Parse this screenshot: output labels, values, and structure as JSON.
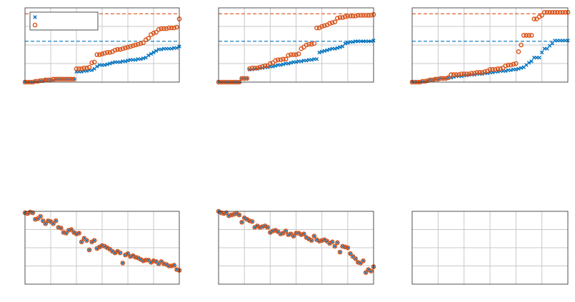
{
  "colors": {
    "series_blue": "#0072BD",
    "series_orange": "#D95319",
    "grid": "#c8c8c8",
    "axes": "#262626",
    "background": "#ffffff"
  },
  "chart_data": [
    {
      "type": "scatter",
      "grid": true,
      "legend": {
        "placement": "top-left",
        "entries": [
          "",
          ""
        ]
      },
      "xlim": [
        0,
        60
      ],
      "ylim": [
        0,
        1
      ],
      "reference_lines": [
        {
          "series": 0,
          "y": 0.55,
          "style": "dashed"
        },
        {
          "series": 1,
          "y": 0.92,
          "style": "dashed"
        }
      ],
      "series": [
        {
          "marker": "x",
          "color": "#0072BD",
          "values": [
            0.0,
            0.0,
            0.0,
            0.0,
            0.01,
            0.01,
            0.02,
            0.02,
            0.03,
            0.03,
            0.03,
            0.03,
            0.04,
            0.04,
            0.04,
            0.04,
            0.04,
            0.04,
            0.04,
            0.04,
            0.14,
            0.14,
            0.14,
            0.15,
            0.15,
            0.16,
            0.16,
            0.18,
            0.21,
            0.23,
            0.23,
            0.23,
            0.24,
            0.25,
            0.26,
            0.27,
            0.27,
            0.27,
            0.28,
            0.28,
            0.29,
            0.3,
            0.3,
            0.3,
            0.31,
            0.31,
            0.32,
            0.33,
            0.36,
            0.38,
            0.4,
            0.42,
            0.44,
            0.44,
            0.45,
            0.45,
            0.45,
            0.45,
            0.46,
            0.46,
            0.48
          ]
        },
        {
          "marker": "o",
          "color": "#D95319",
          "values": [
            0.0,
            0.0,
            0.0,
            0.0,
            0.01,
            0.01,
            0.02,
            0.02,
            0.03,
            0.03,
            0.03,
            0.04,
            0.04,
            0.04,
            0.04,
            0.04,
            0.04,
            0.04,
            0.04,
            0.04,
            0.18,
            0.18,
            0.18,
            0.19,
            0.19,
            0.2,
            0.26,
            0.27,
            0.37,
            0.37,
            0.38,
            0.39,
            0.4,
            0.4,
            0.41,
            0.43,
            0.44,
            0.44,
            0.45,
            0.46,
            0.47,
            0.48,
            0.49,
            0.5,
            0.51,
            0.52,
            0.53,
            0.57,
            0.59,
            0.64,
            0.66,
            0.67,
            0.71,
            0.72,
            0.72,
            0.72,
            0.73,
            0.73,
            0.73,
            0.74,
            0.85
          ]
        }
      ]
    },
    {
      "type": "scatter",
      "grid": true,
      "xlim": [
        0,
        60
      ],
      "ylim": [
        0,
        1
      ],
      "reference_lines": [
        {
          "series": 0,
          "y": 0.55,
          "style": "dashed"
        },
        {
          "series": 1,
          "y": 0.92,
          "style": "dashed"
        }
      ],
      "series": [
        {
          "marker": "x",
          "color": "#0072BD",
          "values": [
            0.0,
            0.0,
            0.0,
            0.0,
            0.0,
            0.0,
            0.0,
            0.0,
            0.0,
            0.05,
            0.05,
            0.05,
            0.17,
            0.17,
            0.18,
            0.18,
            0.19,
            0.19,
            0.2,
            0.2,
            0.21,
            0.21,
            0.22,
            0.23,
            0.23,
            0.24,
            0.25,
            0.25,
            0.26,
            0.27,
            0.27,
            0.28,
            0.28,
            0.29,
            0.29,
            0.3,
            0.3,
            0.31,
            0.31,
            0.4,
            0.41,
            0.42,
            0.43,
            0.44,
            0.45,
            0.45,
            0.46,
            0.47,
            0.48,
            0.52,
            0.53,
            0.54,
            0.54,
            0.55,
            0.55,
            0.55,
            0.55,
            0.55,
            0.55,
            0.55,
            0.56
          ]
        },
        {
          "marker": "o",
          "color": "#D95319",
          "values": [
            0.0,
            0.0,
            0.0,
            0.0,
            0.0,
            0.0,
            0.0,
            0.0,
            0.0,
            0.05,
            0.05,
            0.05,
            0.18,
            0.19,
            0.19,
            0.19,
            0.2,
            0.21,
            0.22,
            0.22,
            0.25,
            0.26,
            0.29,
            0.3,
            0.3,
            0.31,
            0.31,
            0.36,
            0.37,
            0.37,
            0.37,
            0.38,
            0.45,
            0.47,
            0.5,
            0.51,
            0.51,
            0.52,
            0.73,
            0.73,
            0.75,
            0.76,
            0.77,
            0.79,
            0.8,
            0.81,
            0.86,
            0.87,
            0.87,
            0.88,
            0.89,
            0.89,
            0.89,
            0.89,
            0.9,
            0.9,
            0.9,
            0.9,
            0.9,
            0.9,
            0.91
          ]
        }
      ]
    },
    {
      "type": "scatter",
      "grid": true,
      "xlim": [
        0,
        60
      ],
      "ylim": [
        0,
        1
      ],
      "reference_lines": [
        {
          "series": 0,
          "y": 0.55,
          "style": "dashed"
        },
        {
          "series": 1,
          "y": 0.92,
          "style": "dashed"
        }
      ],
      "series": [
        {
          "marker": "x",
          "color": "#0072BD",
          "values": [
            0.0,
            0.0,
            0.0,
            0.0,
            0.01,
            0.01,
            0.02,
            0.03,
            0.03,
            0.04,
            0.04,
            0.05,
            0.05,
            0.05,
            0.06,
            0.06,
            0.07,
            0.08,
            0.08,
            0.08,
            0.09,
            0.09,
            0.1,
            0.1,
            0.1,
            0.11,
            0.11,
            0.11,
            0.12,
            0.12,
            0.13,
            0.13,
            0.14,
            0.14,
            0.15,
            0.15,
            0.15,
            0.16,
            0.16,
            0.17,
            0.17,
            0.18,
            0.19,
            0.2,
            0.23,
            0.26,
            0.28,
            0.33,
            0.33,
            0.33,
            0.4,
            0.45,
            0.45,
            0.49,
            0.52,
            0.56,
            0.56,
            0.56,
            0.56,
            0.56,
            0.56
          ]
        },
        {
          "marker": "o",
          "color": "#D95319",
          "values": [
            0.0,
            0.0,
            0.0,
            0.0,
            0.01,
            0.01,
            0.02,
            0.03,
            0.03,
            0.04,
            0.04,
            0.05,
            0.05,
            0.05,
            0.06,
            0.1,
            0.1,
            0.1,
            0.1,
            0.11,
            0.11,
            0.11,
            0.11,
            0.12,
            0.12,
            0.13,
            0.13,
            0.13,
            0.14,
            0.15,
            0.17,
            0.17,
            0.17,
            0.18,
            0.18,
            0.19,
            0.22,
            0.23,
            0.23,
            0.24,
            0.25,
            0.41,
            0.5,
            0.63,
            0.63,
            0.63,
            0.63,
            0.85,
            0.85,
            0.88,
            0.9,
            0.94,
            0.94,
            0.94,
            0.94,
            0.94,
            0.94,
            0.94,
            0.94,
            0.94,
            0.94
          ]
        }
      ]
    },
    {
      "type": "scatter",
      "grid": true,
      "xlim": [
        0,
        60
      ],
      "ylim": [
        0,
        1
      ],
      "series": [
        {
          "marker": "x",
          "color": "#0072BD",
          "values": [
            0.98,
            0.97,
            0.99,
            0.98,
            0.89,
            0.9,
            0.93,
            0.87,
            0.83,
            0.87,
            0.86,
            0.83,
            0.87,
            0.78,
            0.77,
            0.71,
            0.7,
            0.74,
            0.75,
            0.71,
            0.69,
            0.7,
            0.58,
            0.63,
            0.6,
            0.47,
            0.58,
            0.6,
            0.49,
            0.51,
            0.53,
            0.52,
            0.5,
            0.48,
            0.45,
            0.43,
            0.45,
            0.43,
            0.29,
            0.4,
            0.42,
            0.38,
            0.39,
            0.37,
            0.36,
            0.34,
            0.32,
            0.33,
            0.33,
            0.3,
            0.32,
            0.31,
            0.28,
            0.31,
            0.28,
            0.27,
            0.25,
            0.25,
            0.26,
            0.2,
            0.19
          ]
        },
        {
          "marker": "o",
          "color": "#D95319",
          "values": [
            0.98,
            0.97,
            0.99,
            0.98,
            0.89,
            0.9,
            0.93,
            0.87,
            0.83,
            0.87,
            0.86,
            0.83,
            0.87,
            0.78,
            0.77,
            0.71,
            0.7,
            0.74,
            0.75,
            0.71,
            0.69,
            0.7,
            0.58,
            0.63,
            0.6,
            0.47,
            0.58,
            0.6,
            0.49,
            0.51,
            0.53,
            0.52,
            0.5,
            0.48,
            0.45,
            0.43,
            0.45,
            0.43,
            0.29,
            0.4,
            0.42,
            0.38,
            0.39,
            0.37,
            0.36,
            0.34,
            0.32,
            0.33,
            0.33,
            0.3,
            0.32,
            0.31,
            0.28,
            0.31,
            0.28,
            0.27,
            0.25,
            0.25,
            0.26,
            0.2,
            0.19
          ]
        }
      ]
    },
    {
      "type": "scatter",
      "grid": true,
      "xlim": [
        0,
        60
      ],
      "ylim": [
        0,
        1
      ],
      "series": [
        {
          "marker": "x",
          "color": "#0072BD",
          "values": [
            1.0,
            0.98,
            0.97,
            0.98,
            0.94,
            0.95,
            0.96,
            0.97,
            0.95,
            0.85,
            0.91,
            0.89,
            0.87,
            0.86,
            0.78,
            0.8,
            0.78,
            0.79,
            0.8,
            0.78,
            0.71,
            0.73,
            0.74,
            0.72,
            0.69,
            0.7,
            0.73,
            0.68,
            0.69,
            0.66,
            0.7,
            0.7,
            0.68,
            0.69,
            0.64,
            0.62,
            0.6,
            0.66,
            0.61,
            0.59,
            0.6,
            0.61,
            0.59,
            0.56,
            0.58,
            0.52,
            0.57,
            0.44,
            0.52,
            0.51,
            0.5,
            0.42,
            0.38,
            0.35,
            0.3,
            0.29,
            0.32,
            0.16,
            0.2,
            0.18,
            0.24
          ]
        },
        {
          "marker": "o",
          "color": "#D95319",
          "values": [
            1.0,
            0.98,
            0.97,
            0.98,
            0.94,
            0.95,
            0.96,
            0.97,
            0.95,
            0.85,
            0.91,
            0.89,
            0.87,
            0.86,
            0.78,
            0.8,
            0.78,
            0.79,
            0.8,
            0.78,
            0.71,
            0.73,
            0.74,
            0.72,
            0.69,
            0.7,
            0.73,
            0.68,
            0.69,
            0.66,
            0.7,
            0.7,
            0.68,
            0.69,
            0.64,
            0.62,
            0.6,
            0.66,
            0.61,
            0.59,
            0.6,
            0.61,
            0.59,
            0.56,
            0.58,
            0.52,
            0.57,
            0.44,
            0.52,
            0.51,
            0.5,
            0.42,
            0.38,
            0.35,
            0.3,
            0.29,
            0.32,
            0.16,
            0.2,
            0.18,
            0.24
          ]
        }
      ]
    },
    {
      "type": "scatter",
      "grid": true,
      "xlim": [
        0,
        60
      ],
      "ylim": [
        0,
        1
      ],
      "series": []
    }
  ]
}
